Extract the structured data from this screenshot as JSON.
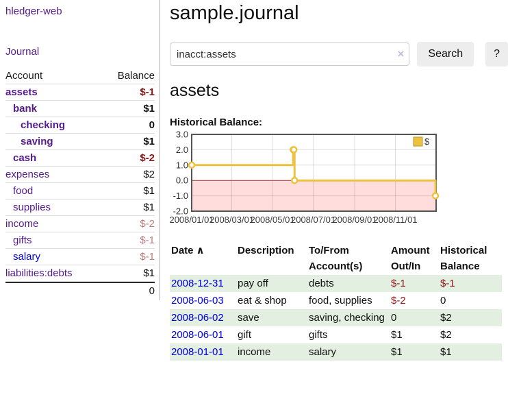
{
  "app": {
    "brand": "hledger-web",
    "nav": {
      "journal": "Journal"
    }
  },
  "sidebar": {
    "headers": {
      "account": "Account",
      "balance": "Balance"
    },
    "rows": [
      {
        "name": "assets",
        "value": "$-1",
        "depth": 0,
        "bold": true,
        "vstyle": "neg",
        "link": ""
      },
      {
        "name": "bank",
        "value": "$1",
        "depth": 1,
        "bold": true,
        "vstyle": "",
        "link": ""
      },
      {
        "name": "checking",
        "value": "0",
        "depth": 2,
        "bold": true,
        "vstyle": "",
        "link": ""
      },
      {
        "name": "saving",
        "value": "$1",
        "depth": 2,
        "bold": true,
        "vstyle": "",
        "link": ""
      },
      {
        "name": "cash",
        "value": "$-2",
        "depth": 1,
        "bold": true,
        "vstyle": "neg",
        "link": ""
      },
      {
        "name": "expenses",
        "value": "$2",
        "depth": 0,
        "bold": false,
        "vstyle": "",
        "link": ""
      },
      {
        "name": "food",
        "value": "$1",
        "depth": 1,
        "bold": false,
        "vstyle": "",
        "link": ""
      },
      {
        "name": "supplies",
        "value": "$1",
        "depth": 1,
        "bold": false,
        "vstyle": "",
        "link": ""
      },
      {
        "name": "income",
        "value": "$-2",
        "depth": 0,
        "bold": false,
        "vstyle": "pale",
        "link": ""
      },
      {
        "name": "gifts",
        "value": "$-1",
        "depth": 1,
        "bold": false,
        "vstyle": "pale",
        "link": ""
      },
      {
        "name": "salary",
        "value": "$-1",
        "depth": 1,
        "bold": false,
        "vstyle": "pale",
        "link": "blue"
      },
      {
        "name": "liabilities:debts",
        "value": "$1",
        "depth": 0,
        "bold": false,
        "vstyle": "",
        "link": ""
      }
    ],
    "total": "0"
  },
  "main": {
    "title": "sample.journal",
    "search": {
      "value": "inacct:assets",
      "clear_icon": "×",
      "button_label": "Search",
      "help_label": "?"
    },
    "account_heading": "assets",
    "chart_title": "Historical Balance:"
  },
  "chart_data": {
    "type": "line",
    "step": true,
    "title": "Historical Balance",
    "x_range": [
      "2008/01/01",
      "2009/01/01"
    ],
    "ylim": [
      -2,
      3
    ],
    "xticks": [
      "2008/01/01",
      "2008/03/01",
      "2008/05/01",
      "2008/07/01",
      "2008/09/01",
      "2008/11/01"
    ],
    "yticks": [
      3,
      2,
      1,
      0,
      -1,
      -2
    ],
    "ytick_labels": [
      "3.0",
      "2.0",
      "1.0",
      "0.0",
      "-1.0",
      "-2.0"
    ],
    "legend_label": "$",
    "legend_position": "top-right",
    "grid": true,
    "series": [
      {
        "name": "$",
        "color": "#edc240",
        "points": [
          [
            "2008/01/01",
            1
          ],
          [
            "2008/06/01",
            2
          ],
          [
            "2008/06/02",
            2
          ],
          [
            "2008/06/03",
            0
          ],
          [
            "2008/12/31",
            -1
          ]
        ]
      }
    ],
    "colors": {
      "negative_region": "#ffdddd",
      "zero_line": "#993333",
      "grid": "rgba(0,0,0,0.13)",
      "border": "#545454",
      "marker_fill": "#ffffff"
    }
  },
  "register": {
    "sort_icon": "∧",
    "headers": [
      {
        "l1": "Date",
        "l2": ""
      },
      {
        "l1": "Description",
        "l2": ""
      },
      {
        "l1": "To/From",
        "l2": "Account(s)"
      },
      {
        "l1": "Amount",
        "l2": "Out/In"
      },
      {
        "l1": "Historical",
        "l2": "Balance"
      }
    ],
    "rows": [
      {
        "date": "2008-12-31",
        "description": "pay off",
        "accounts": "debts",
        "amount": "$-1",
        "balance": "$-1",
        "green": true,
        "amount_neg": true,
        "balance_neg": true
      },
      {
        "date": "2008-06-03",
        "description": "eat & shop",
        "accounts": "food, supplies",
        "amount": "$-2",
        "balance": "0",
        "green": false,
        "amount_neg": true,
        "balance_neg": false
      },
      {
        "date": "2008-06-02",
        "description": "save",
        "accounts": "saving, checking",
        "amount": "0",
        "balance": "$2",
        "green": true,
        "amount_neg": false,
        "balance_neg": false
      },
      {
        "date": "2008-06-01",
        "description": "gift",
        "accounts": "gifts",
        "amount": "$1",
        "balance": "$2",
        "green": false,
        "amount_neg": false,
        "balance_neg": false
      },
      {
        "date": "2008-01-01",
        "description": "income",
        "accounts": "salary",
        "amount": "$1",
        "balance": "$1",
        "green": true,
        "amount_neg": false,
        "balance_neg": false
      }
    ]
  },
  "palette": {
    "link_purple": "#551a8b",
    "link_blue": "#0000dd",
    "negative": "#8c1616",
    "negative_pale": "#c17d7d",
    "row_green": "#e3efe0"
  }
}
